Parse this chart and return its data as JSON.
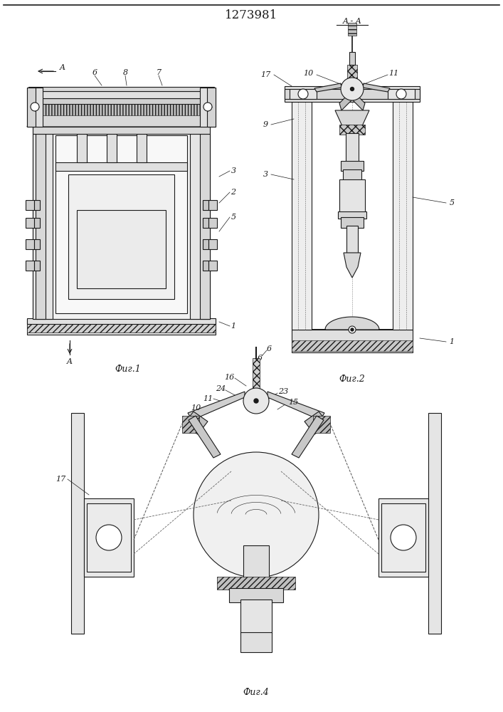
{
  "title": "1273981",
  "title_fontsize": 12,
  "background_color": "#ffffff",
  "line_color": "#1a1a1a",
  "fig1_caption": "Фиг.1",
  "fig2_caption": "Фиг.2",
  "fig4_caption": "Фиг.4"
}
